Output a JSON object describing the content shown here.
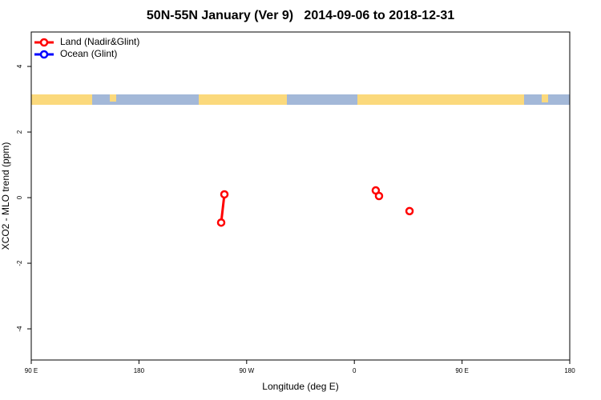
{
  "chart_data": {
    "type": "line",
    "title": "50N-55N January (Ver 9)   2014-09-06 to 2018-12-31",
    "x_label": "Longitude (deg E)",
    "y_label": "XCO2 - MLO trend (ppm)",
    "xlim": [
      -270,
      180
    ],
    "xticks": [
      {
        "value": -270,
        "label": "90 E"
      },
      {
        "value": -180,
        "label": "180"
      },
      {
        "value": -90,
        "label": "90 W"
      },
      0,
      {
        "value": 90,
        "label": "90 E"
      },
      180
    ],
    "ylim": [
      -4.95,
      5.05
    ],
    "yticks": [
      -4,
      -2,
      0,
      2,
      4
    ],
    "legend": "top-left",
    "x": [
      -111.3,
      -108.6,
      0,
      17.9,
      20.6,
      30,
      46.1
    ],
    "series": [
      {
        "name": "Land (Nadir&Glint)",
        "color": "#ff0000",
        "values": [
          -0.76,
          0.1,
          null,
          0.22,
          0.05,
          null,
          -0.41
        ]
      },
      {
        "name": "Ocean (Glint)",
        "color": "#0000ff",
        "values": [
          null,
          null,
          null,
          null,
          null,
          null,
          null
        ]
      }
    ]
  }
}
